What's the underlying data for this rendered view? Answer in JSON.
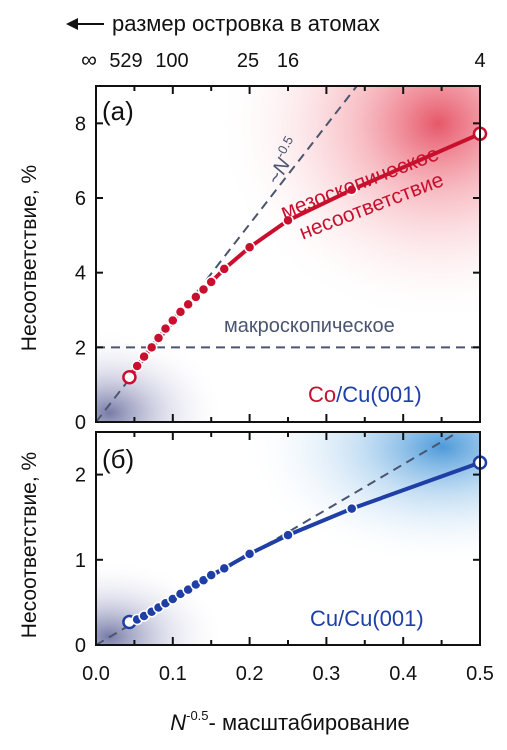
{
  "figure": {
    "top_axis_arrow_label": "размер островка в атомах",
    "top_tick_labels": [
      "∞",
      "529",
      "100",
      "25",
      "16",
      "4"
    ],
    "x_axis_label_italic": "N",
    "x_axis_label_sup": "-0.5",
    "x_axis_label_rest": "- масштабирование",
    "x_tick_labels": [
      "0.0",
      "0.1",
      "0.2",
      "0.3",
      "0.4",
      "0.5"
    ]
  },
  "chart_data": [
    {
      "type": "line",
      "panel": "(а)",
      "ylabel": "Несоответствие, %",
      "xlim": [
        0,
        0.5
      ],
      "ylim": [
        0,
        9
      ],
      "yticks": [
        0,
        2,
        4,
        6,
        8
      ],
      "material_prefix": "Co",
      "material_suffix": "/Cu(001)",
      "annotations": {
        "scaling": "~N",
        "scaling_exp": "-0.5",
        "meso_line1": "мезоскопическое",
        "meso_line2": "несоответствие",
        "macro": "макроскопическое"
      },
      "macroscopic_level": 2.0,
      "scaling_slope": 26.5,
      "series": [
        {
          "x": [
            0.0435,
            0.0536,
            0.0626,
            0.0725,
            0.0814,
            0.0905,
            0.1,
            0.11,
            0.12,
            0.13,
            0.14,
            0.15,
            0.167,
            0.2,
            0.25,
            0.333,
            0.5
          ],
          "y": [
            1.2,
            1.5,
            1.75,
            2.0,
            2.25,
            2.5,
            2.72,
            2.95,
            3.15,
            3.35,
            3.55,
            3.75,
            4.1,
            4.68,
            5.4,
            6.22,
            7.72
          ]
        }
      ]
    },
    {
      "type": "line",
      "panel": "(б)",
      "ylabel": "Несоответствие, %",
      "xlim": [
        0,
        0.5
      ],
      "ylim": [
        0,
        2.5
      ],
      "yticks": [
        0,
        1,
        2
      ],
      "material": "Cu/Cu(001)",
      "scaling_slope": 5.3,
      "series": [
        {
          "x": [
            0.0435,
            0.0536,
            0.0626,
            0.0725,
            0.0814,
            0.0905,
            0.1,
            0.11,
            0.12,
            0.13,
            0.14,
            0.15,
            0.167,
            0.2,
            0.25,
            0.333,
            0.5
          ],
          "y": [
            0.27,
            0.3,
            0.34,
            0.39,
            0.44,
            0.49,
            0.54,
            0.6,
            0.65,
            0.71,
            0.76,
            0.82,
            0.9,
            1.07,
            1.29,
            1.6,
            2.14
          ]
        }
      ]
    }
  ],
  "colors": {
    "red": "#c8102e",
    "blue": "#1f3fa6",
    "dash": "#4a5570",
    "axis": "#111111"
  }
}
